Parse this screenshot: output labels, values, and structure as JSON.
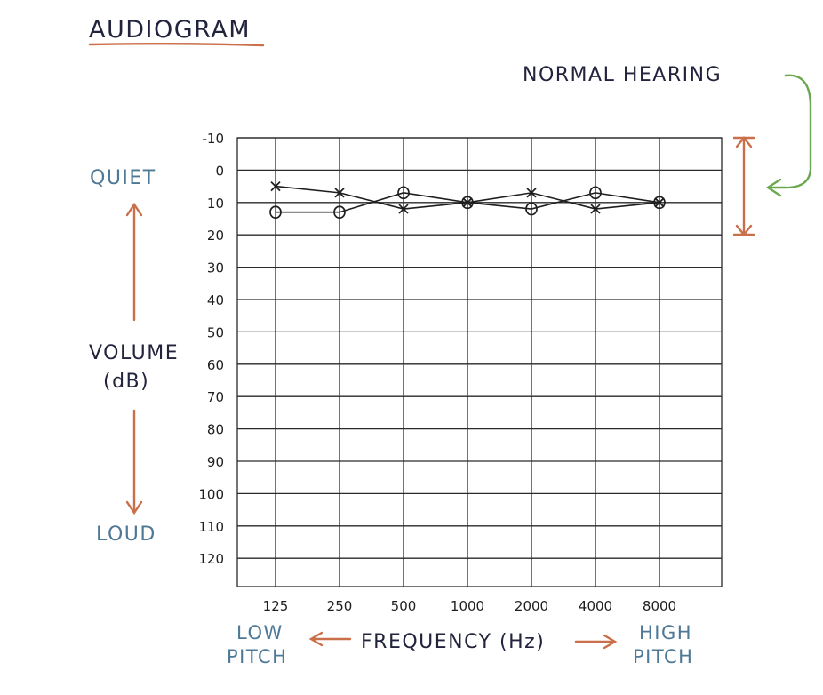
{
  "page": {
    "title": "AUDIOGRAM",
    "normal_hearing_label": "NORMAL HEARING"
  },
  "annotations": {
    "quiet": "QUIET",
    "loud": "LOUD",
    "volume_line1": "VOLUME",
    "volume_line2": "(dB)",
    "low_line1": "LOW",
    "low_line2": "PITCH",
    "high_line1": "HIGH",
    "high_line2": "PITCH",
    "frequency": "FREQUENCY (Hz)"
  },
  "colors": {
    "navy_text": "#22243d",
    "blue_text": "#4d7896",
    "arrow_orange": "#c96f4a",
    "arrow_green": "#6aa84f",
    "underline": "#c96f4a"
  },
  "chart_data": {
    "type": "line",
    "title": "AUDIOGRAM",
    "xlabel": "FREQUENCY (Hz)",
    "ylabel": "VOLUME (dB)",
    "categories": [
      "125",
      "250",
      "500",
      "1000",
      "2000",
      "4000",
      "8000"
    ],
    "y_ticks": [
      "-10",
      "0",
      "10",
      "20",
      "30",
      "40",
      "50",
      "60",
      "70",
      "80",
      "90",
      "100",
      "110",
      "120"
    ],
    "ylim": [
      -10,
      130
    ],
    "y_inverted": true,
    "grid": true,
    "series": [
      {
        "marker": "x",
        "values": [
          5,
          7,
          12,
          10,
          7,
          12,
          10
        ]
      },
      {
        "marker": "o",
        "values": [
          13,
          13,
          7,
          10,
          12,
          7,
          10
        ]
      }
    ],
    "normal_hearing_range": [
      -10,
      20
    ]
  }
}
